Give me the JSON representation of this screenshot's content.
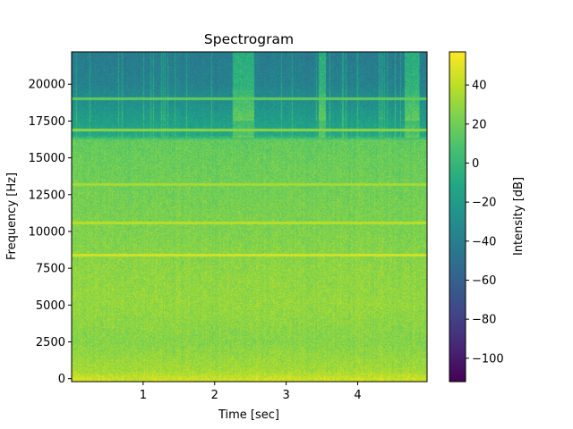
{
  "chart_data": {
    "type": "heatmap",
    "title": "Spectrogram",
    "xlabel": "Time [sec]",
    "ylabel": "Frequency [Hz]",
    "colorbar_label": "Intensity [dB]",
    "colormap": "viridis",
    "xlim": [
      0.0,
      4.97
    ],
    "ylim": [
      -200,
      22200
    ],
    "clim": [
      -112,
      57
    ],
    "x_ticks": [
      1,
      2,
      3,
      4
    ],
    "x_tick_labels": [
      "1",
      "2",
      "3",
      "4"
    ],
    "y_ticks": [
      0,
      2500,
      5000,
      7500,
      10000,
      12500,
      15000,
      17500,
      20000
    ],
    "y_tick_labels": [
      "0",
      "2500",
      "5000",
      "7500",
      "10000",
      "12500",
      "15000",
      "17500",
      "20000"
    ],
    "colorbar_ticks": [
      40,
      20,
      0,
      -20,
      -40,
      -60,
      -80,
      -100
    ],
    "colorbar_tick_labels": [
      "40",
      "20",
      "0",
      "−20",
      "−40",
      "−60",
      "−80",
      "−100"
    ],
    "intensity_profile": {
      "frequency_hz": [
        0,
        500,
        2500,
        5000,
        7500,
        10000,
        12500,
        15000,
        16200,
        16500,
        18000,
        20000,
        22050
      ],
      "mean_db": [
        44,
        34,
        26,
        30,
        28,
        24,
        21,
        18,
        16,
        -10,
        -22,
        -38,
        -42
      ]
    },
    "harmonic_lines": [
      {
        "frequency_hz": 8400,
        "db": 48
      },
      {
        "frequency_hz": 10600,
        "db": 42
      },
      {
        "frequency_hz": 13200,
        "db": 36
      },
      {
        "frequency_hz": 16900,
        "db": 30
      },
      {
        "frequency_hz": 19000,
        "db": 18
      }
    ]
  }
}
